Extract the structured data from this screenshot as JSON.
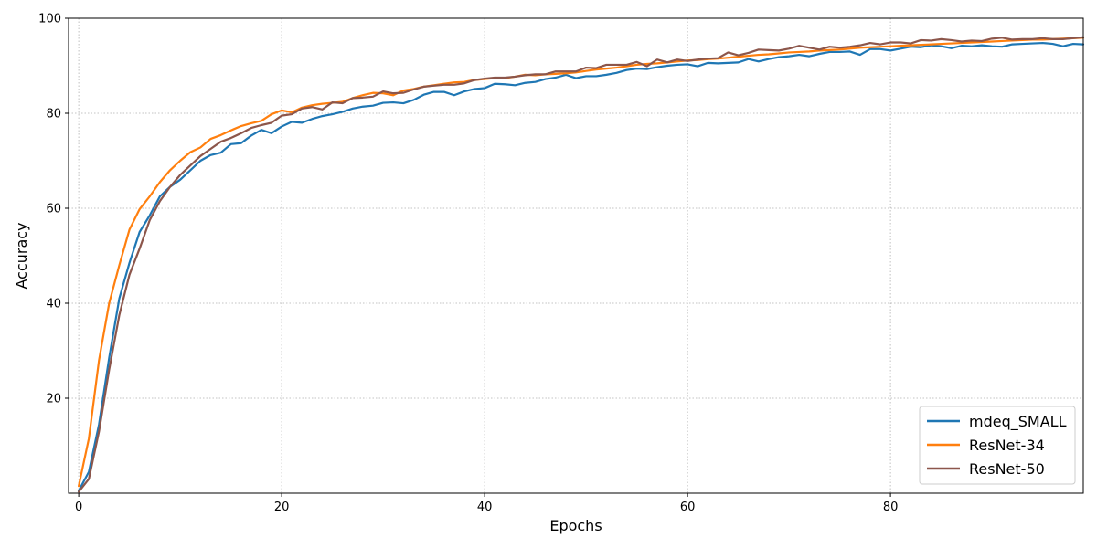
{
  "chart_data": {
    "type": "line",
    "title": "",
    "xlabel": "Epochs",
    "ylabel": "Accuracy",
    "xlim": [
      -1,
      99
    ],
    "ylim": [
      0,
      100
    ],
    "x_ticks": [
      0,
      20,
      40,
      60,
      80
    ],
    "y_ticks": [
      20,
      40,
      60,
      80,
      100
    ],
    "grid": true,
    "legend_position": "bottom-right",
    "series": [
      {
        "name": "mdeq_SMALL",
        "color": "#1f77b4",
        "values": [
          0.5,
          4.5,
          14.5,
          28.5,
          41,
          48.5,
          55,
          58.5,
          62.5,
          64.5,
          66,
          68,
          70,
          71.2,
          71.7,
          73.5,
          73.7,
          75.3,
          76.5,
          75.8,
          77.2,
          78.2,
          78,
          78.8,
          79.4,
          79.8,
          80.3,
          81,
          81.4,
          81.6,
          82.2,
          82.3,
          82.1,
          82.8,
          83.9,
          84.5,
          84.5,
          83.8,
          84.6,
          85.1,
          85.3,
          86.2,
          86.1,
          85.9,
          86.4,
          86.6,
          87.2,
          87.5,
          88.1,
          87.4,
          87.8,
          87.8,
          88.1,
          88.5,
          89.1,
          89.4,
          89.3,
          89.7,
          90,
          90.2,
          90.3,
          89.9,
          90.6,
          90.5,
          90.6,
          90.7,
          91.4,
          90.9,
          91.4,
          91.8,
          92,
          92.3,
          92,
          92.5,
          92.9,
          92.9,
          93,
          92.3,
          93.5,
          93.5,
          93.2,
          93.6,
          94,
          93.9,
          94.3,
          94.1,
          93.7,
          94.2,
          94.1,
          94.3,
          94.1,
          94,
          94.5,
          94.6,
          94.7,
          94.8,
          94.6,
          94.1,
          94.6,
          94.5
        ]
      },
      {
        "name": "ResNet-34",
        "color": "#ff7f0e",
        "values": [
          1.5,
          11.5,
          28,
          40,
          48,
          55.5,
          59.8,
          62.5,
          65.5,
          68,
          70,
          71.8,
          72.8,
          74.6,
          75.4,
          76.4,
          77.3,
          77.9,
          78.4,
          79.8,
          80.6,
          80.2,
          81.2,
          81.7,
          82,
          82.2,
          82.4,
          83.2,
          83.8,
          84.3,
          84.2,
          83.8,
          84.8,
          85.1,
          85.6,
          85.9,
          86.2,
          86.5,
          86.6,
          87,
          87.2,
          87.4,
          87.4,
          87.7,
          88.1,
          88,
          88.2,
          88.3,
          88.4,
          88.6,
          88.9,
          89.2,
          89.4,
          89.6,
          89.9,
          90.2,
          90.4,
          90.5,
          90.7,
          90.9,
          91.1,
          91.2,
          91.4,
          91.5,
          91.7,
          91.9,
          92.1,
          92.3,
          92.4,
          92.6,
          92.8,
          92.9,
          93,
          93.2,
          93.3,
          93.4,
          93.6,
          93.8,
          93.9,
          94,
          94.1,
          94.2,
          94.3,
          94.4,
          94.5,
          94.6,
          94.7,
          94.8,
          94.9,
          95,
          95.1,
          95.2,
          95.3,
          95.4,
          95.5,
          95.5,
          95.6,
          95.7,
          95.8,
          95.9
        ]
      },
      {
        "name": "ResNet-50",
        "color": "#8c564b",
        "values": [
          0.3,
          3,
          13,
          26,
          37.5,
          46,
          51.5,
          57.5,
          61.5,
          64.5,
          67,
          69,
          71,
          72.5,
          74,
          74.8,
          75.8,
          76.9,
          77.5,
          78,
          79.5,
          79.8,
          81,
          81.3,
          80.8,
          82.3,
          82.1,
          83.2,
          83.3,
          83.5,
          84.6,
          84.2,
          84.3,
          85,
          85.6,
          85.8,
          86,
          86,
          86.3,
          87,
          87.3,
          87.5,
          87.5,
          87.7,
          88,
          88.2,
          88.2,
          88.8,
          88.8,
          88.8,
          89.6,
          89.5,
          90.2,
          90.2,
          90.2,
          90.8,
          89.9,
          91.3,
          90.7,
          91.3,
          91,
          91.3,
          91.5,
          91.6,
          92.8,
          92.2,
          92.7,
          93.4,
          93.3,
          93.2,
          93.6,
          94.2,
          93.8,
          93.4,
          94,
          93.8,
          94,
          94.3,
          94.8,
          94.5,
          94.9,
          94.9,
          94.7,
          95.4,
          95.3,
          95.6,
          95.4,
          95.1,
          95.3,
          95.2,
          95.7,
          95.9,
          95.5,
          95.6,
          95.6,
          95.8,
          95.6,
          95.6,
          95.8,
          96
        ]
      }
    ]
  }
}
